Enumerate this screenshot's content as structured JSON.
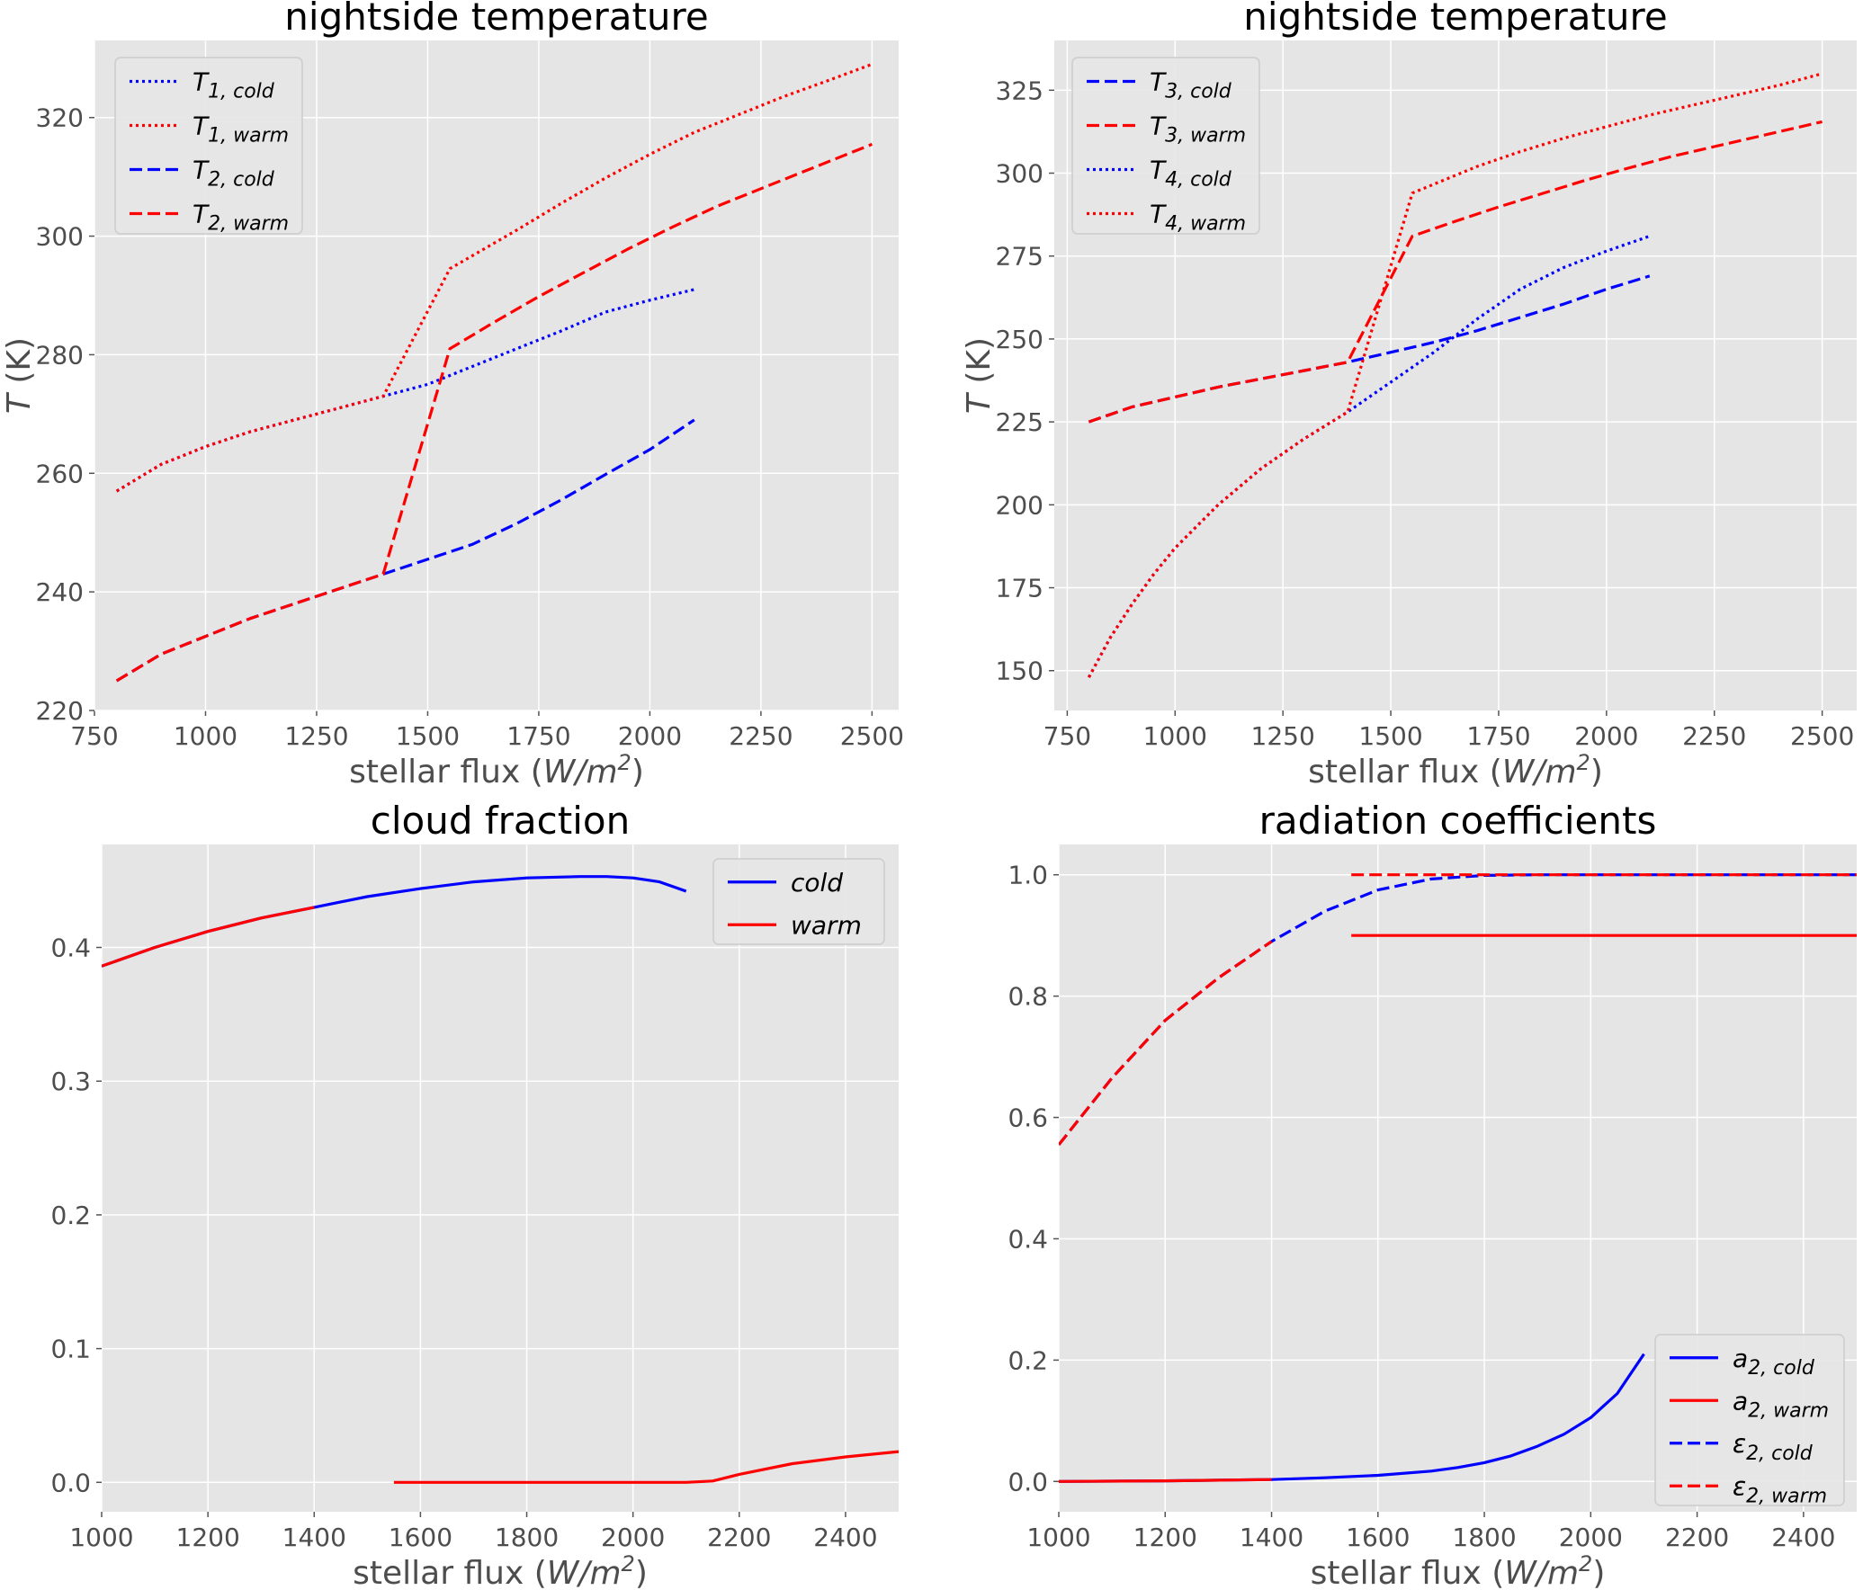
{
  "chart_data": [
    {
      "type": "line",
      "title": "nightside temperature",
      "xlabel": "stellar flux (W/m²)",
      "ylabel": "T (K)",
      "xlim": [
        750,
        2560
      ],
      "ylim": [
        220,
        333
      ],
      "xticks": [
        750,
        1000,
        1250,
        1500,
        1750,
        2000,
        2250,
        2500
      ],
      "yticks": [
        220,
        240,
        260,
        280,
        300,
        320
      ],
      "grid": true,
      "legend_position": "top-left",
      "series": [
        {
          "name": "T1,cold",
          "color": "#0000ff",
          "dash": "dotted",
          "x": [
            800,
            900,
            1000,
            1100,
            1200,
            1300,
            1400,
            1500,
            1600,
            1700,
            1800,
            1900,
            2000,
            2100
          ],
          "y": [
            257,
            261.5,
            264.5,
            267,
            269,
            271,
            273,
            275,
            278,
            281,
            284,
            287.2,
            289.2,
            291
          ]
        },
        {
          "name": "T1,warm",
          "color": "#ff0000",
          "dash": "dotted",
          "x": [
            800,
            900,
            1000,
            1100,
            1200,
            1300,
            1400,
            1550,
            1700,
            1800,
            1900,
            2000,
            2100,
            2200,
            2300,
            2400,
            2500
          ],
          "y": [
            257,
            261.5,
            264.5,
            267,
            269,
            271,
            273,
            294.5,
            301,
            305.5,
            309.8,
            313.8,
            317.5,
            320.5,
            323.5,
            326.2,
            329
          ]
        },
        {
          "name": "T2,cold",
          "color": "#0000ff",
          "dash": "dashed",
          "x": [
            800,
            900,
            1000,
            1100,
            1200,
            1300,
            1400,
            1500,
            1600,
            1700,
            1800,
            1900,
            2000,
            2100
          ],
          "y": [
            225,
            229.5,
            232.5,
            235.5,
            238,
            240.5,
            243,
            245.5,
            248,
            251.5,
            255.5,
            259.8,
            264,
            269
          ]
        },
        {
          "name": "T2,warm",
          "color": "#ff0000",
          "dash": "dashed",
          "x": [
            800,
            900,
            1000,
            1100,
            1200,
            1300,
            1400,
            1550,
            1650,
            1750,
            1850,
            1950,
            2050,
            2150,
            2250,
            2350,
            2450,
            2500
          ],
          "y": [
            225,
            229.5,
            232.5,
            235.5,
            238,
            240.5,
            243,
            281,
            285.5,
            289.8,
            293.8,
            297.8,
            301.5,
            305,
            308,
            311,
            314,
            315.5
          ]
        }
      ]
    },
    {
      "type": "line",
      "title": "nightside temperature",
      "xlabel": "stellar flux (W/m²)",
      "ylabel": "T (K)",
      "xlim": [
        720,
        2580
      ],
      "ylim": [
        138,
        340
      ],
      "xticks": [
        750,
        1000,
        1250,
        1500,
        1750,
        2000,
        2250,
        2500
      ],
      "yticks": [
        150,
        175,
        200,
        225,
        250,
        275,
        300,
        325
      ],
      "grid": true,
      "legend_position": "top-left",
      "series": [
        {
          "name": "T3,cold",
          "color": "#0000ff",
          "dash": "dashed",
          "x": [
            800,
            900,
            1000,
            1100,
            1200,
            1300,
            1400,
            1500,
            1600,
            1700,
            1800,
            1900,
            2000,
            2100
          ],
          "y": [
            225,
            229.5,
            232.5,
            235.5,
            238,
            240.5,
            243,
            246,
            249,
            252.5,
            256.5,
            260.5,
            265,
            269
          ]
        },
        {
          "name": "T3,warm",
          "color": "#ff0000",
          "dash": "dashed",
          "x": [
            800,
            900,
            1000,
            1100,
            1200,
            1300,
            1400,
            1550,
            1650,
            1750,
            1850,
            1950,
            2050,
            2150,
            2250,
            2350,
            2450,
            2500
          ],
          "y": [
            225,
            229.5,
            232.5,
            235.5,
            238,
            240.5,
            243,
            281,
            285.5,
            289.8,
            293.8,
            297.8,
            301.5,
            305,
            308,
            311,
            314,
            315.5
          ]
        },
        {
          "name": "T4,cold",
          "color": "#0000ff",
          "dash": "dotted",
          "x": [
            800,
            850,
            900,
            950,
            1000,
            1100,
            1200,
            1300,
            1400,
            1500,
            1600,
            1700,
            1800,
            1900,
            2000,
            2100
          ],
          "y": [
            148,
            160,
            170,
            179,
            187,
            200,
            211,
            220,
            228,
            237,
            246,
            256,
            265,
            271.5,
            276.5,
            281
          ]
        },
        {
          "name": "T4,warm",
          "color": "#ff0000",
          "dash": "dotted",
          "x": [
            800,
            850,
            900,
            950,
            1000,
            1100,
            1200,
            1300,
            1400,
            1550,
            1700,
            1800,
            1900,
            2000,
            2100,
            2200,
            2300,
            2400,
            2500
          ],
          "y": [
            148,
            160,
            170,
            179,
            187,
            200,
            211,
            220,
            228,
            294,
            302,
            306.5,
            310.5,
            314,
            317.5,
            320.5,
            323.5,
            326.5,
            330
          ]
        }
      ]
    },
    {
      "type": "line",
      "title": "cloud fraction",
      "xlabel": "stellar flux (W/m²)",
      "ylabel": "",
      "xlim": [
        1000,
        2500
      ],
      "ylim": [
        -0.022,
        0.477
      ],
      "xticks": [
        1000,
        1200,
        1400,
        1600,
        1800,
        2000,
        2200,
        2400
      ],
      "yticks": [
        0.0,
        0.1,
        0.2,
        0.3,
        0.4
      ],
      "grid": true,
      "legend_position": "top-right",
      "series": [
        {
          "name": "cold",
          "color": "#0000ff",
          "dash": "solid",
          "x": [
            1000,
            1100,
            1200,
            1300,
            1400,
            1500,
            1600,
            1700,
            1800,
            1900,
            1950,
            2000,
            2050,
            2100
          ],
          "y": [
            0.386,
            0.4,
            0.412,
            0.422,
            0.43,
            0.438,
            0.444,
            0.449,
            0.452,
            0.453,
            0.453,
            0.452,
            0.449,
            0.442
          ]
        },
        {
          "name": "warm",
          "color": "#ff0000",
          "dash": "solid",
          "x": [
            1000,
            1100,
            1200,
            1300,
            1400
          ],
          "y": [
            0.386,
            0.4,
            0.412,
            0.422,
            0.43
          ]
        },
        {
          "name": "",
          "color": "#ff0000",
          "dash": "solid",
          "x": [
            1550,
            1700,
            1900,
            2100,
            2150,
            2200,
            2300,
            2400,
            2500
          ],
          "y": [
            0.0,
            0.0,
            0.0,
            0.0,
            0.001,
            0.006,
            0.014,
            0.019,
            0.023
          ]
        }
      ]
    },
    {
      "type": "line",
      "title": "radiation coefficients",
      "xlabel": "stellar flux (W/m²)",
      "ylabel": "",
      "xlim": [
        1000,
        2500
      ],
      "ylim": [
        -0.05,
        1.05
      ],
      "xticks": [
        1000,
        1200,
        1400,
        1600,
        1800,
        2000,
        2200,
        2400
      ],
      "yticks": [
        0.0,
        0.2,
        0.4,
        0.6,
        0.8,
        1.0
      ],
      "grid": true,
      "legend_position": "bottom-right",
      "series": [
        {
          "name": "a2,cold",
          "color": "#0000ff",
          "dash": "solid",
          "x": [
            1000,
            1200,
            1400,
            1500,
            1600,
            1700,
            1750,
            1800,
            1850,
            1900,
            1950,
            2000,
            2050,
            2100
          ],
          "y": [
            0.0,
            0.001,
            0.003,
            0.006,
            0.01,
            0.017,
            0.023,
            0.031,
            0.042,
            0.058,
            0.078,
            0.105,
            0.145,
            0.21
          ]
        },
        {
          "name": "a2,warm",
          "color": "#ff0000",
          "dash": "solid",
          "x": [
            1000,
            1200,
            1400
          ],
          "y": [
            0.0,
            0.001,
            0.003
          ]
        },
        {
          "name": "",
          "color": "#ff0000",
          "dash": "solid",
          "x": [
            1550,
            2500
          ],
          "y": [
            0.9,
            0.9
          ]
        },
        {
          "name": "ε2,cold",
          "color": "#0000ff",
          "dash": "dashed",
          "x": [
            1000,
            1100,
            1200,
            1300,
            1400,
            1500,
            1600,
            1700,
            1800,
            1900,
            2000,
            2100,
            2500
          ],
          "y": [
            0.555,
            0.665,
            0.76,
            0.83,
            0.89,
            0.94,
            0.975,
            0.993,
            0.999,
            1.0,
            1.0,
            1.0,
            1.0
          ]
        },
        {
          "name": "ε2,warm",
          "color": "#ff0000",
          "dash": "dashed",
          "x": [
            1000,
            1100,
            1200,
            1300,
            1400
          ],
          "y": [
            0.555,
            0.665,
            0.76,
            0.83,
            0.89
          ]
        },
        {
          "name": "",
          "color": "#ff0000",
          "dash": "dashed",
          "x": [
            1550,
            2500
          ],
          "y": [
            1.0,
            1.0
          ]
        }
      ]
    }
  ],
  "legends": [
    [
      {
        "base": "T",
        "sub": "1, cold",
        "color": "#0000ff",
        "dash": "dotted"
      },
      {
        "base": "T",
        "sub": "1, warm",
        "color": "#ff0000",
        "dash": "dotted"
      },
      {
        "base": "T",
        "sub": "2, cold",
        "color": "#0000ff",
        "dash": "dashed"
      },
      {
        "base": "T",
        "sub": "2, warm",
        "color": "#ff0000",
        "dash": "dashed"
      }
    ],
    [
      {
        "base": "T",
        "sub": "3, cold",
        "color": "#0000ff",
        "dash": "dashed"
      },
      {
        "base": "T",
        "sub": "3, warm",
        "color": "#ff0000",
        "dash": "dashed"
      },
      {
        "base": "T",
        "sub": "4, cold",
        "color": "#0000ff",
        "dash": "dotted"
      },
      {
        "base": "T",
        "sub": "4, warm",
        "color": "#ff0000",
        "dash": "dotted"
      }
    ],
    [
      {
        "base": "cold",
        "sub": "",
        "color": "#0000ff",
        "dash": "solid"
      },
      {
        "base": "warm",
        "sub": "",
        "color": "#ff0000",
        "dash": "solid"
      }
    ],
    [
      {
        "base": "a",
        "sub": "2, cold",
        "color": "#0000ff",
        "dash": "solid"
      },
      {
        "base": "a",
        "sub": "2, warm",
        "color": "#ff0000",
        "dash": "solid"
      },
      {
        "base": "ε",
        "sub": "2, cold",
        "color": "#0000ff",
        "dash": "dashed"
      },
      {
        "base": "ε",
        "sub": "2, warm",
        "color": "#ff0000",
        "dash": "dashed"
      }
    ]
  ]
}
